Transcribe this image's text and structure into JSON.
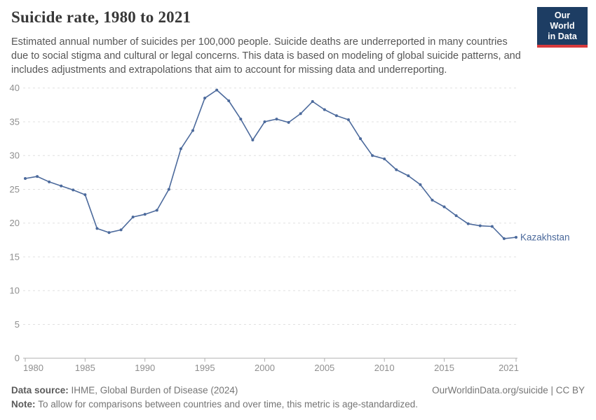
{
  "header": {
    "title": "Suicide rate, 1980 to 2021",
    "subtitle": "Estimated annual number of suicides per 100,000 people. Suicide deaths are underreported in many countries due to social stigma and cultural or legal concerns. This data is based on modeling of global suicide patterns, and includes adjustments and extrapolations that aim to account for missing data and underreporting.",
    "logo": {
      "line1": "Our World",
      "line2": "in Data",
      "bg_color": "#1d3d63",
      "accent_color": "#d7393c"
    }
  },
  "chart_data": {
    "type": "line",
    "title": "Suicide rate, 1980 to 2021",
    "xlabel": "",
    "ylabel": "",
    "xlim": [
      1980,
      2021
    ],
    "ylim": [
      0,
      40
    ],
    "grid": "horizontal-dashed",
    "x_ticks": [
      1980,
      1985,
      1990,
      1995,
      2000,
      2005,
      2010,
      2015,
      2021
    ],
    "y_ticks": [
      0,
      5,
      10,
      15,
      20,
      25,
      30,
      35,
      40
    ],
    "x": [
      1980,
      1981,
      1982,
      1983,
      1984,
      1985,
      1986,
      1987,
      1988,
      1989,
      1990,
      1991,
      1992,
      1993,
      1994,
      1995,
      1996,
      1997,
      1998,
      1999,
      2000,
      2001,
      2002,
      2003,
      2004,
      2005,
      2006,
      2007,
      2008,
      2009,
      2010,
      2011,
      2012,
      2013,
      2014,
      2015,
      2016,
      2017,
      2018,
      2019,
      2020,
      2021
    ],
    "series": [
      {
        "name": "Kazakhstan",
        "color": "#4c6a9c",
        "values": [
          26.6,
          26.9,
          26.1,
          25.5,
          24.9,
          24.2,
          19.2,
          18.6,
          19.0,
          20.9,
          21.3,
          21.9,
          25.0,
          31.0,
          33.7,
          38.5,
          39.7,
          38.1,
          35.4,
          32.3,
          35.0,
          35.4,
          34.9,
          36.2,
          38.0,
          36.8,
          35.9,
          35.3,
          32.5,
          30.0,
          29.5,
          27.9,
          27.0,
          25.7,
          23.4,
          22.4,
          21.1,
          19.9,
          19.6,
          19.5,
          17.7,
          17.9
        ]
      }
    ],
    "end_label": "Kazakhstan",
    "colors": {
      "gridline": "#e0e0e0",
      "axis": "#b0b0b0",
      "tick_label": "#8f8f8f"
    }
  },
  "footer": {
    "source_label": "Data source:",
    "source_text": "IHME, Global Burden of Disease (2024)",
    "credit": "OurWorldinData.org/suicide | CC BY",
    "note_label": "Note:",
    "note_text": "To allow for comparisons between countries and over time, this metric is age-standardized."
  }
}
